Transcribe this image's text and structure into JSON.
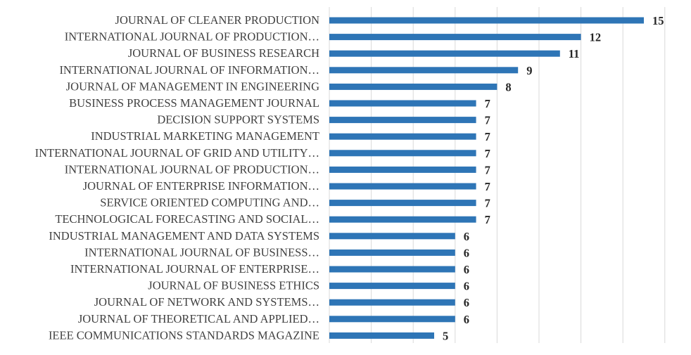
{
  "chart_data": {
    "type": "bar",
    "orientation": "horizontal",
    "categories": [
      "JOURNAL OF CLEANER PRODUCTION",
      "INTERNATIONAL JOURNAL OF PRODUCTION…",
      "JOURNAL OF BUSINESS RESEARCH",
      "INTERNATIONAL JOURNAL OF INFORMATION…",
      "JOURNAL OF MANAGEMENT IN ENGINEERING",
      "BUSINESS PROCESS MANAGEMENT JOURNAL",
      "DECISION SUPPORT SYSTEMS",
      "INDUSTRIAL MARKETING MANAGEMENT",
      "INTERNATIONAL JOURNAL OF GRID AND UTILITY…",
      "INTERNATIONAL JOURNAL OF PRODUCTION…",
      "JOURNAL OF ENTERPRISE INFORMATION…",
      "SERVICE ORIENTED COMPUTING AND…",
      "TECHNOLOGICAL FORECASTING AND SOCIAL…",
      "INDUSTRIAL MANAGEMENT AND DATA SYSTEMS",
      "INTERNATIONAL JOURNAL OF BUSINESS…",
      "INTERNATIONAL JOURNAL OF ENTERPRISE…",
      "JOURNAL OF BUSINESS ETHICS",
      "JOURNAL OF NETWORK AND SYSTEMS…",
      "JOURNAL OF THEORETICAL AND APPLIED…",
      "IEEE COMMUNICATIONS STANDARDS MAGAZINE"
    ],
    "values": [
      15,
      12,
      11,
      9,
      8,
      7,
      7,
      7,
      7,
      7,
      7,
      7,
      7,
      6,
      6,
      6,
      6,
      6,
      6,
      5
    ],
    "xlim": [
      0,
      16
    ],
    "grid": true,
    "data_labels": true,
    "bar_color": "#2e75b6"
  }
}
